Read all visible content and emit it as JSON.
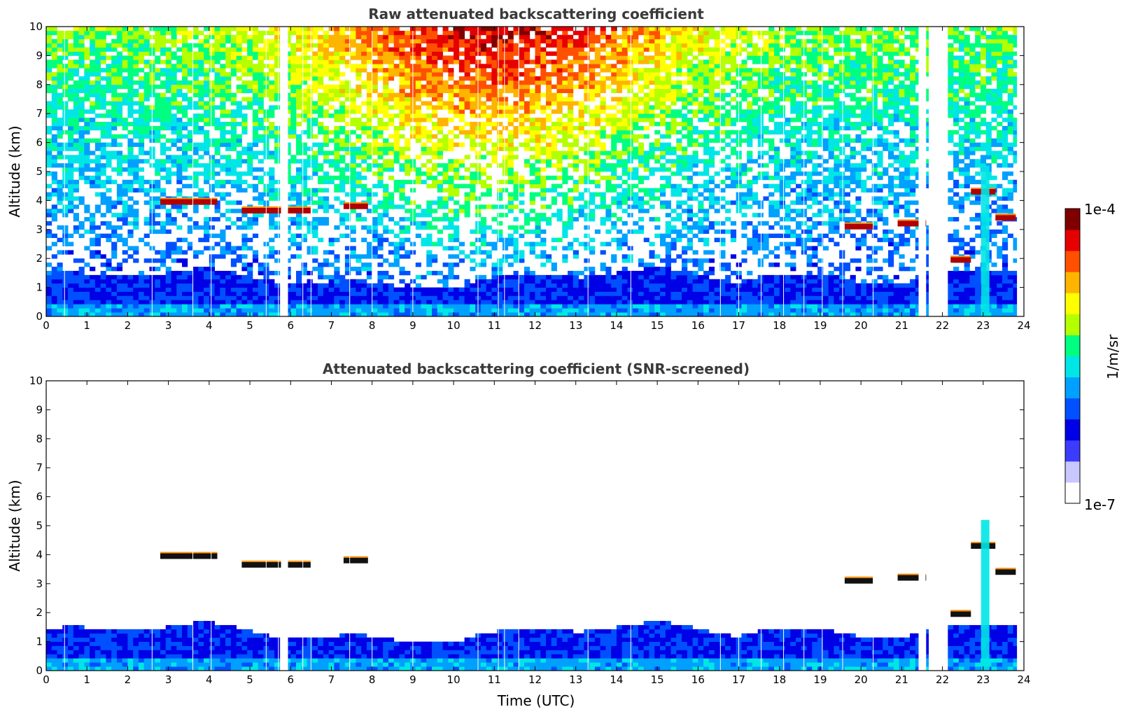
{
  "chart_data": [
    {
      "type": "heatmap",
      "title": "Raw attenuated backscattering coefficient",
      "xlabel": "",
      "ylabel": "Altitude (km)",
      "xlim": [
        0,
        24
      ],
      "ylim": [
        0,
        10
      ],
      "xticks": [
        "0",
        "1",
        "2",
        "3",
        "4",
        "5",
        "6",
        "7",
        "8",
        "9",
        "10",
        "11",
        "12",
        "13",
        "14",
        "15",
        "16",
        "17",
        "18",
        "19",
        "20",
        "21",
        "22",
        "23",
        "24"
      ],
      "yticks": [
        "0",
        "1",
        "2",
        "3",
        "4",
        "5",
        "6",
        "7",
        "8",
        "9",
        "10"
      ],
      "features": {
        "aerosol_layer_top_km": 1.3,
        "cloud_layers": [
          {
            "t_start": 2.8,
            "t_end": 4.2,
            "alt_km": 3.95
          },
          {
            "t_start": 4.8,
            "t_end": 6.5,
            "alt_km": 3.65
          },
          {
            "t_start": 7.3,
            "t_end": 7.9,
            "alt_km": 3.8
          },
          {
            "t_start": 19.6,
            "t_end": 20.3,
            "alt_km": 3.1
          },
          {
            "t_start": 20.9,
            "t_end": 21.6,
            "alt_km": 3.2
          },
          {
            "t_start": 22.2,
            "t_end": 22.7,
            "alt_km": 1.95
          },
          {
            "t_start": 22.7,
            "t_end": 23.3,
            "alt_km": 4.3
          },
          {
            "t_start": 23.3,
            "t_end": 23.8,
            "alt_km": 3.4
          }
        ],
        "data_gaps_utc": [
          5.85,
          21.5,
          21.75,
          22.0
        ]
      }
    },
    {
      "type": "heatmap",
      "title": "Attenuated backscattering coefficient (SNR-screened)",
      "xlabel": "Time (UTC)",
      "ylabel": "Altitude (km)",
      "xlim": [
        0,
        24
      ],
      "ylim": [
        0,
        10
      ],
      "xticks": [
        "0",
        "1",
        "2",
        "3",
        "4",
        "5",
        "6",
        "7",
        "8",
        "9",
        "10",
        "11",
        "12",
        "13",
        "14",
        "15",
        "16",
        "17",
        "18",
        "19",
        "20",
        "21",
        "22",
        "23",
        "24"
      ],
      "yticks": [
        "0",
        "1",
        "2",
        "3",
        "4",
        "5",
        "6",
        "7",
        "8",
        "9",
        "10"
      ]
    }
  ],
  "colorbar": {
    "label": "1/m/sr",
    "max_label": "1e-4",
    "min_label": "1e-7",
    "colors": [
      "#ffffff",
      "#c8c8ff",
      "#3c3cff",
      "#0000e6",
      "#0050ff",
      "#00a0ff",
      "#00e6e6",
      "#00ff80",
      "#b4ff00",
      "#ffff00",
      "#ffb400",
      "#ff5000",
      "#e60000",
      "#800000"
    ]
  }
}
